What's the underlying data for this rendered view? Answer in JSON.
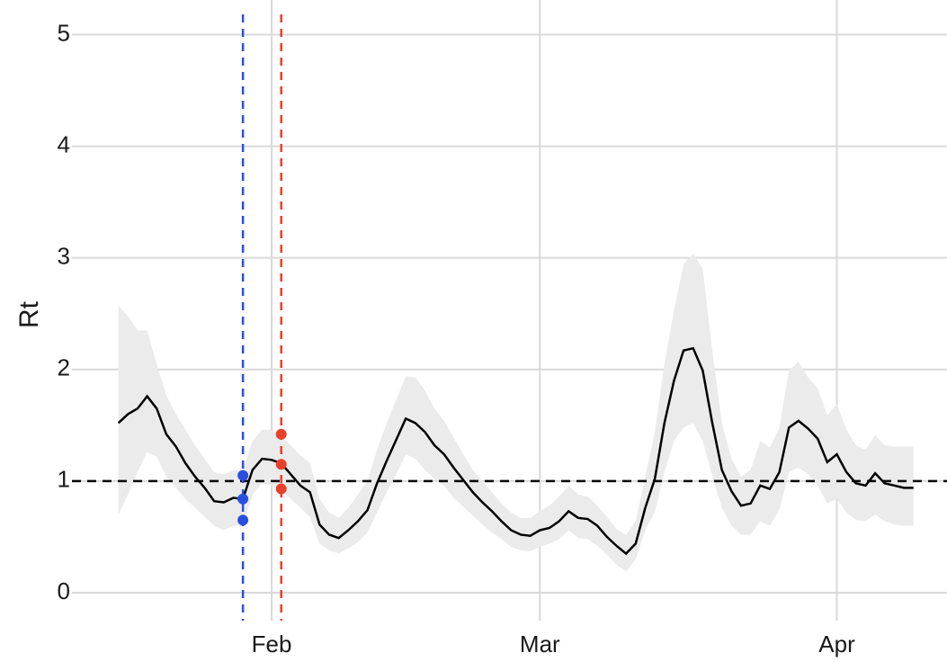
{
  "chart_data": {
    "type": "line",
    "y_label": "Rt",
    "xlim": [
      -20.85,
      70.5
    ],
    "ylim": [
      -0.25,
      5.31
    ],
    "xticks": [
      {
        "value": 0,
        "label": "Feb"
      },
      {
        "value": 28,
        "label": "Mar"
      },
      {
        "value": 59,
        "label": "Apr"
      }
    ],
    "yticks": [
      0,
      1,
      2,
      3,
      4,
      5
    ],
    "grid": true,
    "grid_color": "#d9d9d9",
    "x": [
      -16,
      -15,
      -14,
      -13,
      -12,
      -11,
      -10,
      -9,
      -8,
      -7,
      -6,
      -5,
      -4,
      -3,
      -2,
      -1,
      0,
      1,
      2,
      3,
      4,
      5,
      6,
      7,
      8,
      9,
      10,
      11,
      12,
      13,
      14,
      15,
      16,
      17,
      18,
      19,
      20,
      21,
      22,
      23,
      24,
      25,
      26,
      27,
      28,
      29,
      30,
      31,
      32,
      33,
      34,
      35,
      36,
      37,
      38,
      39,
      40,
      41,
      42,
      43,
      44,
      45,
      46,
      47,
      48,
      49,
      50,
      51,
      52,
      53,
      54,
      55,
      56,
      57,
      58,
      59,
      60,
      61,
      62,
      63,
      64,
      65,
      66,
      67
    ],
    "series": [
      {
        "color": "#000000",
        "band_color": "#ebebeb",
        "values": [
          1.52,
          1.6,
          1.65,
          1.76,
          1.65,
          1.42,
          1.31,
          1.16,
          1.04,
          0.94,
          0.82,
          0.81,
          0.85,
          0.84,
          1.1,
          1.2,
          1.19,
          1.16,
          1.06,
          0.96,
          0.9,
          0.61,
          0.52,
          0.49,
          0.56,
          0.64,
          0.74,
          0.98,
          1.18,
          1.37,
          1.56,
          1.52,
          1.44,
          1.32,
          1.24,
          1.12,
          1.01,
          0.9,
          0.81,
          0.73,
          0.64,
          0.56,
          0.52,
          0.51,
          0.56,
          0.58,
          0.64,
          0.73,
          0.67,
          0.66,
          0.6,
          0.5,
          0.42,
          0.35,
          0.44,
          0.76,
          1.02,
          1.52,
          1.9,
          2.17,
          2.19,
          1.99,
          1.52,
          1.1,
          0.91,
          0.78,
          0.8,
          0.96,
          0.93,
          1.08,
          1.48,
          1.54,
          1.47,
          1.38,
          1.17,
          1.24,
          1.08,
          0.98,
          0.96,
          1.07,
          0.98,
          0.96,
          0.94,
          0.94
        ],
        "upper": [
          2.57,
          2.48,
          2.35,
          2.35,
          2.05,
          1.77,
          1.6,
          1.46,
          1.32,
          1.2,
          1.08,
          1.06,
          1.1,
          1.1,
          1.36,
          1.46,
          1.46,
          1.4,
          1.32,
          1.23,
          1.16,
          0.84,
          0.72,
          0.67,
          0.76,
          0.88,
          1.0,
          1.28,
          1.52,
          1.73,
          1.94,
          1.93,
          1.81,
          1.65,
          1.54,
          1.39,
          1.24,
          1.1,
          1.0,
          0.9,
          0.8,
          0.72,
          0.67,
          0.67,
          0.73,
          0.78,
          0.86,
          0.96,
          0.88,
          0.86,
          0.78,
          0.68,
          0.57,
          0.52,
          0.64,
          1.04,
          1.44,
          2.05,
          2.53,
          2.94,
          3.04,
          2.9,
          2.17,
          1.52,
          1.2,
          1.04,
          1.1,
          1.36,
          1.3,
          1.48,
          1.99,
          2.07,
          1.93,
          1.83,
          1.59,
          1.69,
          1.46,
          1.32,
          1.28,
          1.41,
          1.32,
          1.31,
          1.31,
          1.31
        ],
        "lower": [
          0.7,
          0.88,
          1.08,
          1.26,
          1.22,
          1.04,
          0.94,
          0.84,
          0.76,
          0.68,
          0.6,
          0.56,
          0.6,
          0.6,
          0.88,
          0.98,
          0.96,
          0.92,
          0.84,
          0.76,
          0.68,
          0.44,
          0.38,
          0.35,
          0.4,
          0.45,
          0.54,
          0.72,
          0.9,
          1.06,
          1.24,
          1.2,
          1.1,
          1.02,
          0.96,
          0.85,
          0.77,
          0.69,
          0.61,
          0.54,
          0.48,
          0.41,
          0.38,
          0.37,
          0.41,
          0.44,
          0.48,
          0.56,
          0.49,
          0.48,
          0.42,
          0.34,
          0.25,
          0.19,
          0.3,
          0.56,
          0.72,
          1.08,
          1.36,
          1.48,
          1.52,
          1.36,
          1.04,
          0.76,
          0.6,
          0.52,
          0.52,
          0.64,
          0.6,
          0.74,
          1.08,
          1.12,
          1.06,
          0.96,
          0.8,
          0.84,
          0.72,
          0.65,
          0.64,
          0.7,
          0.64,
          0.61,
          0.6,
          0.6
        ]
      }
    ],
    "hlines": [
      {
        "value": 1,
        "color": "#000000"
      }
    ],
    "vlines": [
      {
        "value": -3,
        "color": "#2a4fe0",
        "points": [
          1.05,
          0.84,
          0.65
        ]
      },
      {
        "value": 1,
        "color": "#e8412a",
        "points": [
          1.42,
          1.15,
          0.93
        ]
      }
    ]
  }
}
